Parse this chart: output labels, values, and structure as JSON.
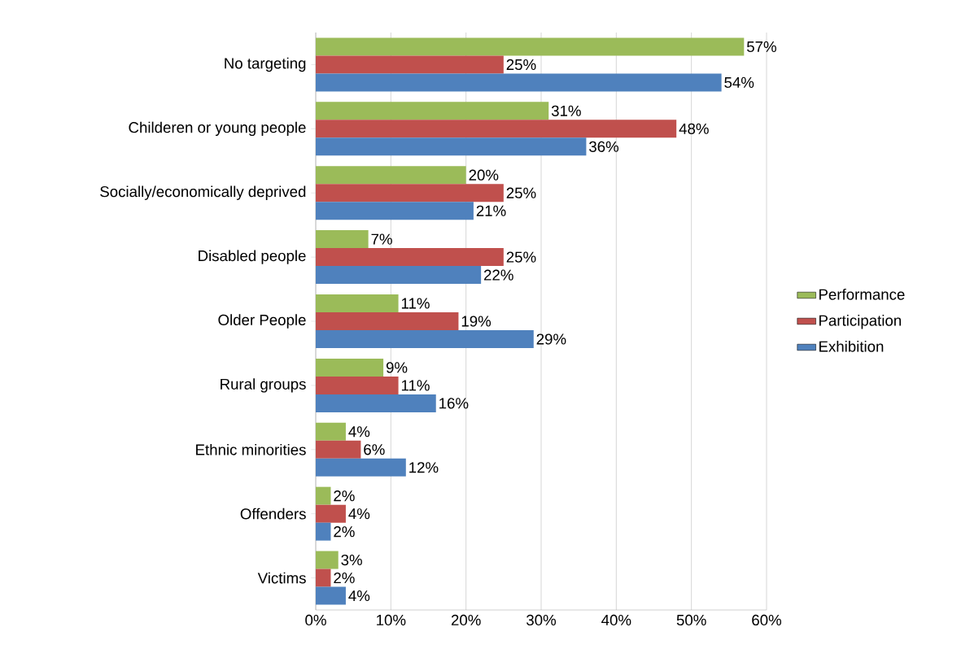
{
  "chart_data": {
    "type": "bar",
    "orientation": "horizontal",
    "categories": [
      "No targeting",
      "Childeren or young people",
      "Socially/economically deprived",
      "Disabled people",
      "Older People",
      "Rural groups",
      "Ethnic minorities",
      "Offenders",
      "Victims"
    ],
    "series": [
      {
        "name": "Performance",
        "color": "#9bbb59",
        "values": [
          57,
          31,
          20,
          7,
          11,
          9,
          4,
          2,
          3
        ],
        "value_labels": [
          "57%",
          "31%",
          "20%",
          "7%",
          "11%",
          "9%",
          "4%",
          "2%",
          "3%"
        ]
      },
      {
        "name": "Participation",
        "color": "#c0504d",
        "values": [
          25,
          48,
          25,
          25,
          19,
          11,
          6,
          4,
          2
        ],
        "value_labels": [
          "25%",
          "48%",
          "25%",
          "25%",
          "19%",
          "11%",
          "6%",
          "4%",
          "2%"
        ]
      },
      {
        "name": "Exhibition",
        "color": "#4f81bd",
        "values": [
          54,
          36,
          21,
          22,
          29,
          16,
          12,
          2,
          4
        ],
        "value_labels": [
          "54%",
          "36%",
          "21%",
          "22%",
          "29%",
          "16%",
          "12%",
          "2%",
          "4%"
        ]
      }
    ],
    "xlim": [
      0,
      60
    ],
    "xticks": [
      {
        "value": 0,
        "label": "0%"
      },
      {
        "value": 10,
        "label": "10%"
      },
      {
        "value": 20,
        "label": "20%"
      },
      {
        "value": 30,
        "label": "30%"
      },
      {
        "value": 40,
        "label": "40%"
      },
      {
        "value": 50,
        "label": "50%"
      },
      {
        "value": 60,
        "label": "60%"
      }
    ],
    "grid": "x",
    "legend": "right"
  }
}
